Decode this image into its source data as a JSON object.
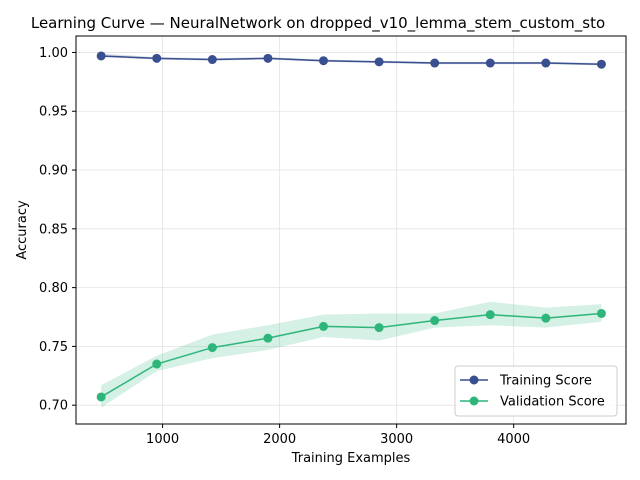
{
  "chart_data": {
    "type": "line",
    "title": "Learning Curve — NeuralNetwork on dropped_v10_lemma_stem_custom_sto",
    "xlabel": "Training Examples",
    "ylabel": "Accuracy",
    "xlim": [
      260,
      4960
    ],
    "ylim": [
      0.684,
      1.014
    ],
    "x_ticks": [
      1000,
      2000,
      3000,
      4000
    ],
    "y_ticks": [
      0.7,
      0.75,
      0.8,
      0.85,
      0.9,
      0.95,
      1.0
    ],
    "grid": true,
    "legend_position": "lower right",
    "x": [
      475,
      950,
      1425,
      1900,
      2375,
      2850,
      3325,
      3800,
      4275,
      4750
    ],
    "series": [
      {
        "name": "Training Score",
        "color": "#3a4f8f",
        "values": [
          0.997,
          0.995,
          0.994,
          0.995,
          0.993,
          0.992,
          0.991,
          0.991,
          0.991,
          0.99
        ],
        "band": [
          [
            0.996,
            0.999
          ],
          [
            0.994,
            0.996
          ],
          [
            0.993,
            0.995
          ],
          [
            0.994,
            0.996
          ],
          [
            0.992,
            0.994
          ],
          [
            0.991,
            0.993
          ],
          [
            0.99,
            0.992
          ],
          [
            0.99,
            0.992
          ],
          [
            0.99,
            0.992
          ],
          [
            0.989,
            0.991
          ]
        ]
      },
      {
        "name": "Validation Score",
        "color": "#2db57a",
        "values": [
          0.707,
          0.735,
          0.749,
          0.757,
          0.767,
          0.766,
          0.772,
          0.777,
          0.774,
          0.778
        ],
        "band": [
          [
            0.698,
            0.717
          ],
          [
            0.729,
            0.742
          ],
          [
            0.74,
            0.76
          ],
          [
            0.747,
            0.768
          ],
          [
            0.758,
            0.777
          ],
          [
            0.755,
            0.778
          ],
          [
            0.766,
            0.778
          ],
          [
            0.768,
            0.788
          ],
          [
            0.766,
            0.783
          ],
          [
            0.771,
            0.786
          ]
        ]
      }
    ]
  }
}
